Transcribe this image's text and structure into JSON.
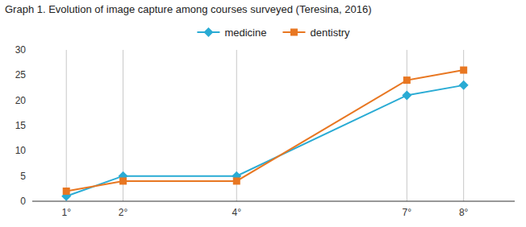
{
  "chart_data": {
    "type": "line",
    "title": "Graph 1. Evolution of image capture among courses surveyed (Teresina, 2016)",
    "x": [
      1,
      2,
      4,
      7,
      8
    ],
    "xlim": [
      0.4,
      8.9
    ],
    "xticks": [
      {
        "value": 1,
        "label": "1°"
      },
      {
        "value": 2,
        "label": "2°"
      },
      {
        "value": 4,
        "label": "4°"
      },
      {
        "value": 7,
        "label": "7°"
      },
      {
        "value": 8,
        "label": "8°"
      }
    ],
    "ylim": [
      0,
      30
    ],
    "yticks": [
      0,
      5,
      10,
      15,
      20,
      25,
      30
    ],
    "grid": "x",
    "legend": "top",
    "series": [
      {
        "name": "medicine",
        "color": "#29ABD4",
        "marker": "diamond",
        "values": [
          1,
          5,
          5,
          21,
          23
        ]
      },
      {
        "name": "dentistry",
        "color": "#E87722",
        "marker": "square",
        "values": [
          2,
          4,
          4,
          24,
          26
        ]
      }
    ]
  }
}
